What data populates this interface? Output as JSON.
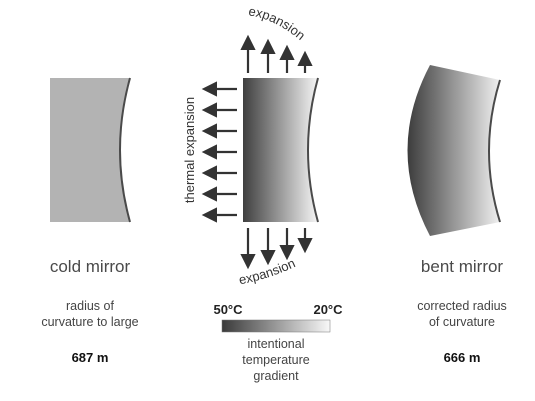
{
  "left": {
    "title": "cold mirror",
    "desc_line1": "radius  of",
    "desc_line2": "curvature to large",
    "value": "687 m"
  },
  "middle": {
    "top_label": "expansion",
    "side_label": "thermal expansion",
    "bottom_label": "expansion",
    "temp_hot": "50°C",
    "temp_cold": "20°C",
    "gradient_line1": "intentional",
    "gradient_line2": "temperature",
    "gradient_line3": "gradient"
  },
  "right": {
    "title": "bent mirror",
    "desc_line1": "corrected radius",
    "desc_line2": "of curvature",
    "value": "666 m"
  },
  "colors": {
    "cold_fill": "#b3b3b3",
    "gradient_dark": "#3f3f3f",
    "gradient_light": "#f6f6f6",
    "outline": "#4a4a4a",
    "arrow": "#333333"
  }
}
